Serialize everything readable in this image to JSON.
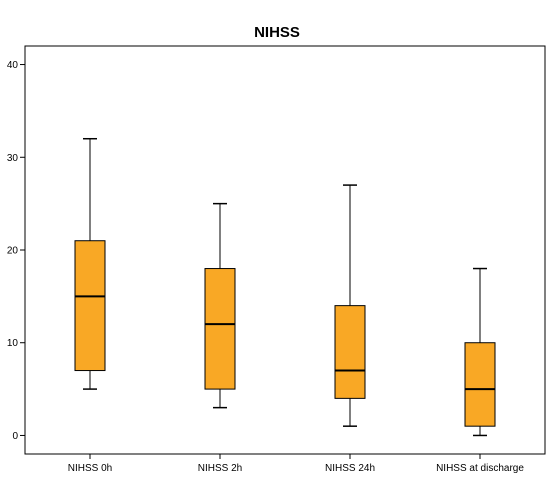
{
  "chart_data": {
    "type": "boxplot",
    "title": "NIHSS",
    "xlabel": "",
    "ylabel": "",
    "ylim": [
      -2,
      42
    ],
    "yticks": [
      0,
      10,
      20,
      30,
      40
    ],
    "categories": [
      "NIHSS 0h",
      "NIHSS 2h",
      "NIHSS 24h",
      "NIHSS at discharge"
    ],
    "boxes": [
      {
        "min": 5,
        "q1": 7,
        "median": 15,
        "q3": 21,
        "max": 32
      },
      {
        "min": 3,
        "q1": 5,
        "median": 12,
        "q3": 18,
        "max": 25
      },
      {
        "min": 1,
        "q1": 4,
        "median": 7,
        "q3": 14,
        "max": 27
      },
      {
        "min": 0,
        "q1": 1,
        "median": 5,
        "q3": 10,
        "max": 18
      }
    ],
    "colors": {
      "box_fill": "#F9A825",
      "box_stroke": "#000000",
      "axis": "#000000"
    },
    "grid": false,
    "legend": "none"
  }
}
